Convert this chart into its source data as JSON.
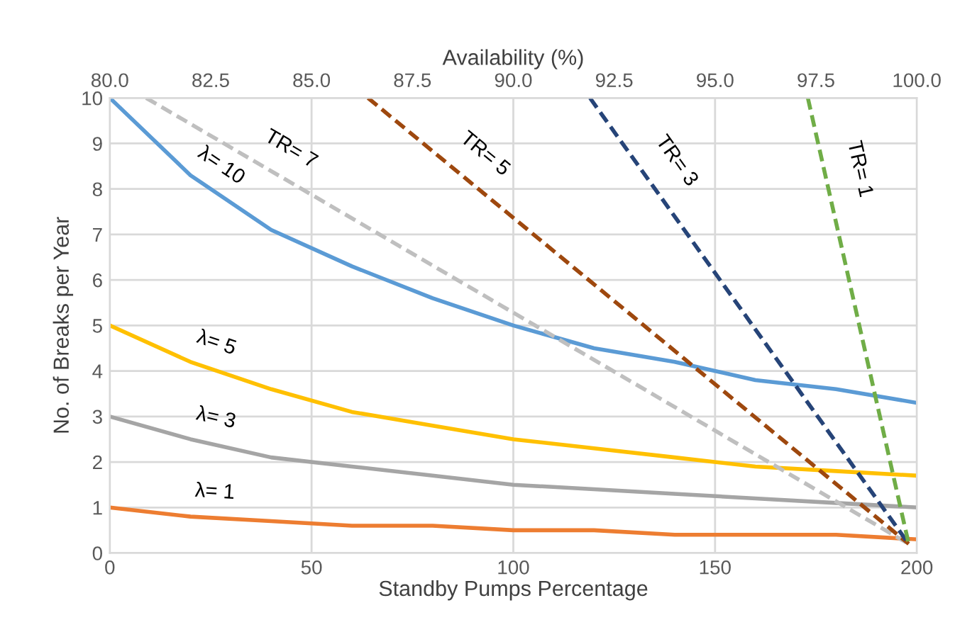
{
  "chart_data": {
    "type": "line",
    "xlabel": "Standby Pumps Percentage",
    "ylabel": "No. of Breaks per Year",
    "x2label": "Availability (%)",
    "xlim": [
      0,
      200
    ],
    "xticks": [
      0,
      50,
      100,
      150,
      200
    ],
    "ylim": [
      0,
      10
    ],
    "yticks": [
      0,
      1,
      2,
      3,
      4,
      5,
      6,
      7,
      8,
      9,
      10
    ],
    "x2lim": [
      80,
      100
    ],
    "x2ticks": [
      {
        "value": 80,
        "label": "80.0"
      },
      82.5,
      {
        "value": 85,
        "label": "85.0"
      },
      87.5,
      {
        "value": 90,
        "label": "90.0"
      },
      92.5,
      {
        "value": 95,
        "label": "95.0"
      },
      97.5,
      {
        "value": 100,
        "label": "100.0"
      }
    ],
    "grid": true,
    "legend": false,
    "series": [
      {
        "name": "λ= 10",
        "color": "#5b9bd5",
        "line_style": "solid",
        "x": [
          0,
          20,
          40,
          60,
          80,
          100,
          120,
          140,
          160,
          180,
          200
        ],
        "values": [
          10,
          8.3,
          7.1,
          6.3,
          5.6,
          5,
          4.5,
          4.2,
          3.8,
          3.6,
          3.3
        ]
      },
      {
        "name": "λ= 5",
        "color": "#ffc000",
        "line_style": "solid",
        "x": [
          0,
          20,
          40,
          60,
          80,
          100,
          120,
          140,
          160,
          180,
          200
        ],
        "values": [
          5,
          4.2,
          3.6,
          3.1,
          2.8,
          2.5,
          2.3,
          2.1,
          1.9,
          1.8,
          1.7
        ]
      },
      {
        "name": "λ= 3",
        "color": "#a5a5a5",
        "line_style": "solid",
        "x": [
          0,
          20,
          40,
          60,
          80,
          100,
          120,
          140,
          160,
          180,
          200
        ],
        "values": [
          3,
          2.5,
          2.1,
          1.9,
          1.7,
          1.5,
          1.4,
          1.3,
          1.2,
          1.1,
          1.0
        ]
      },
      {
        "name": "λ= 1",
        "color": "#ed7d31",
        "line_style": "solid",
        "x": [
          0,
          20,
          40,
          60,
          80,
          100,
          120,
          140,
          160,
          180,
          200
        ],
        "values": [
          1,
          0.8,
          0.7,
          0.6,
          0.6,
          0.5,
          0.5,
          0.4,
          0.4,
          0.4,
          0.3
        ]
      },
      {
        "name": "TR= 7",
        "color": "#bfbfbf",
        "line_style": "dashed",
        "x": [
          9,
          198
        ],
        "values": [
          10,
          0.2
        ]
      },
      {
        "name": "TR= 5",
        "color": "#9e480e",
        "line_style": "dashed",
        "x": [
          64,
          198
        ],
        "values": [
          10,
          0.2
        ]
      },
      {
        "name": "TR= 3",
        "color": "#264478",
        "line_style": "dashed",
        "x": [
          119,
          198
        ],
        "values": [
          10,
          0.2
        ]
      },
      {
        "name": "TR= 1",
        "color": "#70ad47",
        "line_style": "dashed",
        "x": [
          173,
          198
        ],
        "values": [
          10,
          0.2
        ]
      }
    ]
  }
}
